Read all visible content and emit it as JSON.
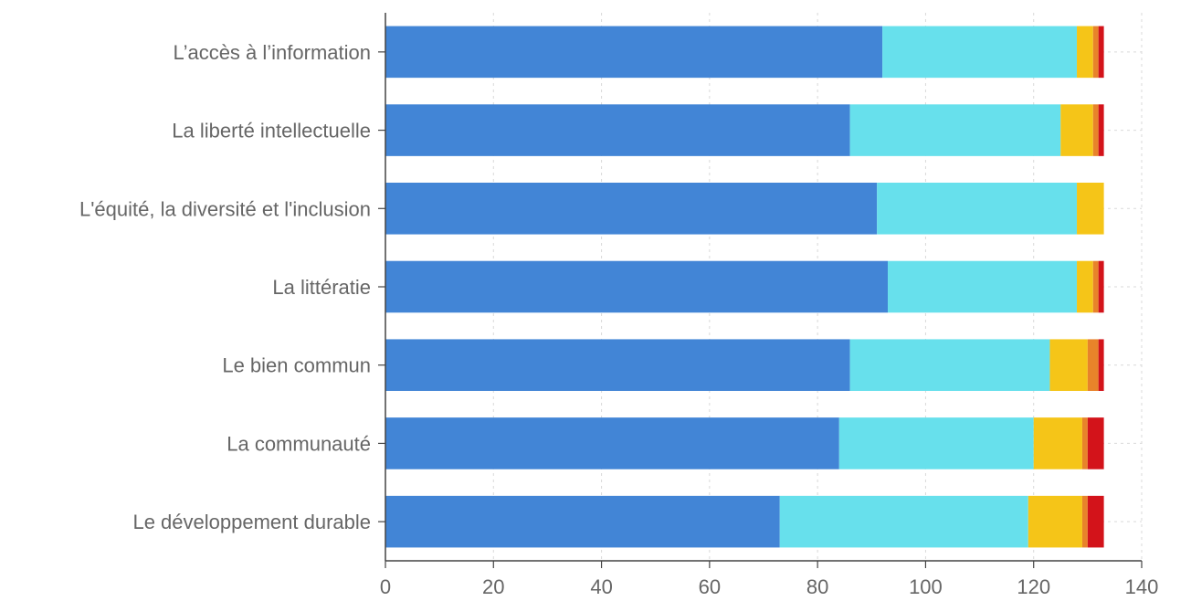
{
  "chart_data": {
    "type": "bar",
    "orientation": "horizontal",
    "stacked": true,
    "categories": [
      "L’accès à l’information",
      "La liberté intellectuelle",
      "L'équité, la diversité et l'inclusion",
      "La littératie",
      "Le bien commun",
      "La communauté",
      "Le développement durable"
    ],
    "series": [
      {
        "color": "#4285d6",
        "values": [
          92,
          86,
          91,
          93,
          86,
          84,
          73
        ]
      },
      {
        "color": "#67e0ec",
        "values": [
          36,
          39,
          37,
          35,
          37,
          36,
          46
        ]
      },
      {
        "color": "#f5c518",
        "values": [
          3,
          6,
          5,
          3,
          7,
          9,
          10
        ]
      },
      {
        "color": "#e8832a",
        "values": [
          1,
          1,
          0,
          1,
          2,
          1,
          1
        ]
      },
      {
        "color": "#d3131a",
        "values": [
          1,
          1,
          0,
          1,
          1,
          3,
          3
        ]
      }
    ],
    "xlim": [
      0,
      140
    ],
    "xticks": [
      "0",
      "20",
      "40",
      "60",
      "80",
      "100",
      "120",
      "140"
    ],
    "grid": true,
    "title": "",
    "xlabel": "",
    "ylabel": ""
  }
}
